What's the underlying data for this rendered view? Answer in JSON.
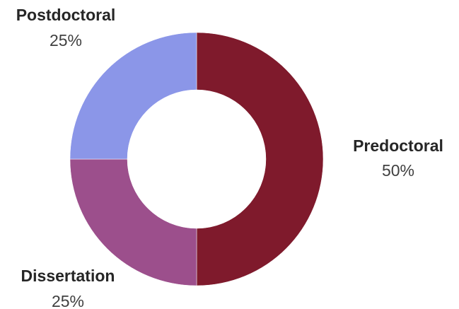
{
  "chart_data": {
    "type": "pie",
    "variant": "donut",
    "categories": [
      "Predoctoral",
      "Dissertation",
      "Postdoctoral"
    ],
    "values": [
      50,
      25,
      25
    ],
    "value_labels": [
      "50%",
      "25%",
      "25%"
    ],
    "colors": [
      "#7f1a2c",
      "#9c4f8c",
      "#8b96e8"
    ],
    "start_angle_deg": 0,
    "direction": "clockwise",
    "legend": "none",
    "title": ""
  }
}
